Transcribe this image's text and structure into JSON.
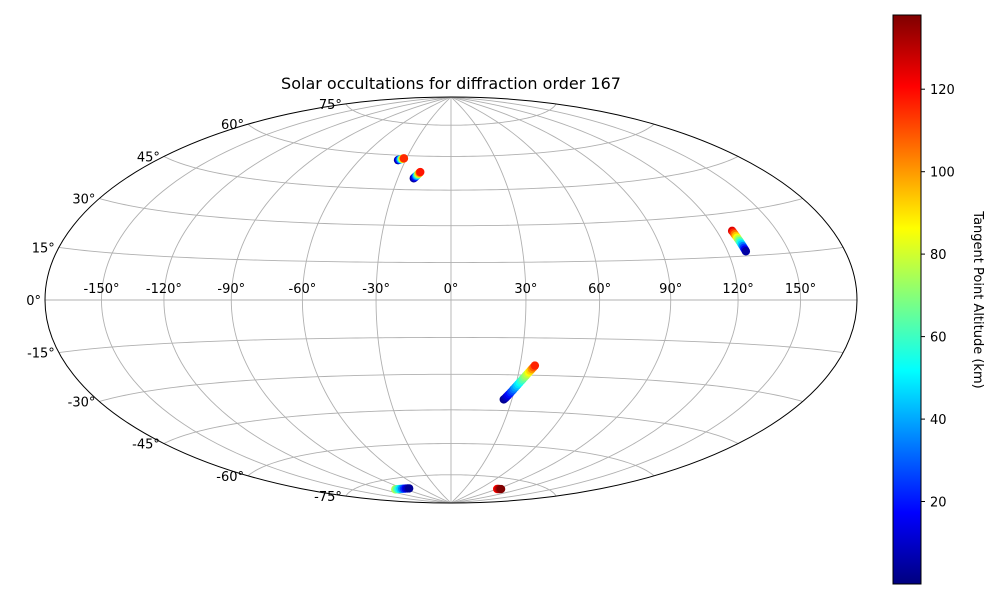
{
  "chart_data": {
    "type": "scatter",
    "projection": "hammer",
    "title": "Solar occultations for diffraction order 167",
    "grid": true,
    "longitude_ticks": [
      "-150°",
      "-120°",
      "-90°",
      "-60°",
      "-30°",
      "0°",
      "30°",
      "60°",
      "90°",
      "120°",
      "150°"
    ],
    "latitude_ticks": [
      "75°",
      "60°",
      "45°",
      "30°",
      "15°",
      "0°",
      "-15°",
      "-30°",
      "-45°",
      "-60°",
      "-75°"
    ],
    "colorbar": {
      "label": "Tangent Point Altitude (km)",
      "ticks": [
        "20",
        "40",
        "60",
        "80",
        "100",
        "120"
      ],
      "range": [
        0,
        138
      ],
      "colormap": "jet"
    },
    "series": [
      {
        "points": [
          {
            "lon": -35.0,
            "lat": 57.8,
            "alt": 2
          },
          {
            "lon": -34.7,
            "lat": 57.9,
            "alt": 8
          },
          {
            "lon": -34.4,
            "lat": 58.0,
            "alt": 15
          },
          {
            "lon": -34.0,
            "lat": 58.1,
            "alt": 25
          },
          {
            "lon": -33.6,
            "lat": 58.2,
            "alt": 40
          },
          {
            "lon": -33.2,
            "lat": 58.3,
            "alt": 55
          },
          {
            "lon": -32.8,
            "lat": 58.4,
            "alt": 70
          },
          {
            "lon": -32.4,
            "lat": 58.5,
            "alt": 85
          },
          {
            "lon": -32.0,
            "lat": 58.6,
            "alt": 100
          },
          {
            "lon": -31.7,
            "lat": 58.7,
            "alt": 115
          }
        ]
      },
      {
        "points": [
          {
            "lon": -21.0,
            "lat": 50.0,
            "alt": 2
          },
          {
            "lon": -20.8,
            "lat": 50.2,
            "alt": 6
          },
          {
            "lon": -20.6,
            "lat": 50.4,
            "alt": 12
          },
          {
            "lon": -20.3,
            "lat": 50.7,
            "alt": 20
          },
          {
            "lon": -20.0,
            "lat": 51.0,
            "alt": 32
          },
          {
            "lon": -19.7,
            "lat": 51.3,
            "alt": 45
          },
          {
            "lon": -19.4,
            "lat": 51.6,
            "alt": 60
          },
          {
            "lon": -19.1,
            "lat": 51.9,
            "alt": 75
          },
          {
            "lon": -18.8,
            "lat": 52.2,
            "alt": 90
          },
          {
            "lon": -18.5,
            "lat": 52.5,
            "alt": 105
          },
          {
            "lon": -18.2,
            "lat": 52.8,
            "alt": 118
          }
        ]
      },
      {
        "points": [
          {
            "lon": 127.5,
            "lat": 23.8,
            "alt": 125
          },
          {
            "lon": 127.6,
            "lat": 23.2,
            "alt": 115
          },
          {
            "lon": 127.7,
            "lat": 22.6,
            "alt": 105
          },
          {
            "lon": 127.8,
            "lat": 22.0,
            "alt": 95
          },
          {
            "lon": 127.9,
            "lat": 21.4,
            "alt": 85
          },
          {
            "lon": 128.0,
            "lat": 20.8,
            "alt": 75
          },
          {
            "lon": 128.1,
            "lat": 20.2,
            "alt": 65
          },
          {
            "lon": 128.2,
            "lat": 19.6,
            "alt": 55
          },
          {
            "lon": 128.3,
            "lat": 19.0,
            "alt": 45
          },
          {
            "lon": 128.4,
            "lat": 18.4,
            "alt": 35
          },
          {
            "lon": 128.5,
            "lat": 17.8,
            "alt": 25
          },
          {
            "lon": 128.6,
            "lat": 17.2,
            "alt": 15
          },
          {
            "lon": 128.7,
            "lat": 16.6,
            "alt": 5
          }
        ]
      },
      {
        "points": [
          {
            "lon": 26.0,
            "lat": -40.3,
            "alt": 2
          },
          {
            "lon": 26.5,
            "lat": -39.8,
            "alt": 5
          },
          {
            "lon": 27.0,
            "lat": -39.2,
            "alt": 9
          },
          {
            "lon": 27.5,
            "lat": -38.6,
            "alt": 13
          },
          {
            "lon": 28.0,
            "lat": -38.0,
            "alt": 18
          },
          {
            "lon": 28.5,
            "lat": -37.3,
            "alt": 23
          },
          {
            "lon": 29.0,
            "lat": -36.6,
            "alt": 28
          },
          {
            "lon": 29.5,
            "lat": -35.9,
            "alt": 33
          },
          {
            "lon": 30.0,
            "lat": -35.2,
            "alt": 38
          },
          {
            "lon": 30.5,
            "lat": -34.5,
            "alt": 43
          },
          {
            "lon": 31.0,
            "lat": -33.8,
            "alt": 48
          },
          {
            "lon": 31.5,
            "lat": -33.1,
            "alt": 53
          },
          {
            "lon": 32.0,
            "lat": -32.4,
            "alt": 58
          },
          {
            "lon": 32.5,
            "lat": -31.7,
            "alt": 63
          },
          {
            "lon": 33.0,
            "lat": -31.0,
            "alt": 68
          },
          {
            "lon": 33.5,
            "lat": -30.3,
            "alt": 73
          },
          {
            "lon": 34.0,
            "lat": -29.6,
            "alt": 78
          },
          {
            "lon": 34.5,
            "lat": -28.9,
            "alt": 85
          },
          {
            "lon": 35.0,
            "lat": -28.2,
            "alt": 92
          },
          {
            "lon": 35.5,
            "lat": -27.5,
            "alt": 100
          },
          {
            "lon": 36.0,
            "lat": -26.8,
            "alt": 108
          },
          {
            "lon": 36.5,
            "lat": -26.1,
            "alt": 116
          }
        ]
      },
      {
        "points": [
          {
            "lon": 90.0,
            "lat": -80.2,
            "alt": 120
          },
          {
            "lon": 92.0,
            "lat": -80.1,
            "alt": 128
          },
          {
            "lon": 94.0,
            "lat": -80.0,
            "alt": 134
          },
          {
            "lon": 96.0,
            "lat": -79.9,
            "alt": 138
          }
        ]
      },
      {
        "points": [
          {
            "lon": -105.0,
            "lat": -79.5,
            "alt": 75
          },
          {
            "lon": -102.0,
            "lat": -79.6,
            "alt": 65
          },
          {
            "lon": -99.0,
            "lat": -79.7,
            "alt": 55
          },
          {
            "lon": -96.0,
            "lat": -79.8,
            "alt": 45
          },
          {
            "lon": -93.0,
            "lat": -79.9,
            "alt": 35
          },
          {
            "lon": -90.0,
            "lat": -80.0,
            "alt": 25
          },
          {
            "lon": -87.0,
            "lat": -80.1,
            "alt": 15
          },
          {
            "lon": -84.0,
            "lat": -80.2,
            "alt": 8
          },
          {
            "lon": -81.0,
            "lat": -80.3,
            "alt": 3
          }
        ]
      }
    ]
  }
}
